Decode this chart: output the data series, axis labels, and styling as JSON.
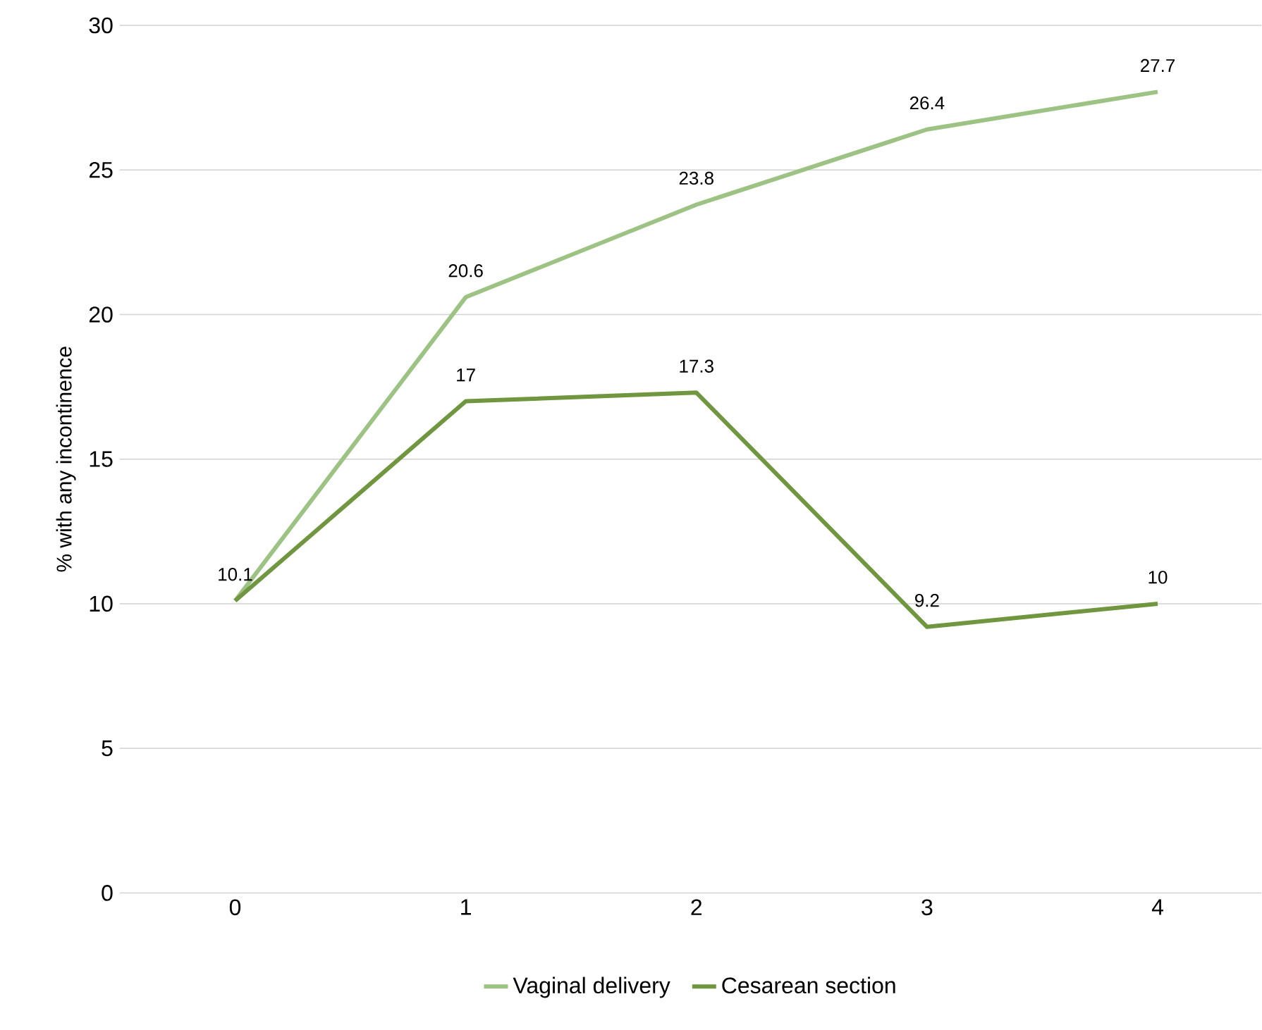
{
  "chart_data": {
    "type": "line",
    "ylabel": "% with any incontinence",
    "categories": [
      "0",
      "1",
      "2",
      "3",
      "4"
    ],
    "series": [
      {
        "name": "Vaginal delivery",
        "color": "#9dc384",
        "values": [
          10.1,
          20.6,
          23.8,
          26.4,
          27.7
        ],
        "value_labels": [
          "10.1",
          "20.6",
          "23.8",
          "26.4",
          "27.7"
        ]
      },
      {
        "name": "Cesarean section",
        "color": "#70963f",
        "values": [
          10.1,
          17,
          17.3,
          9.2,
          10
        ],
        "value_labels": [
          null,
          "17",
          "17.3",
          "9.2",
          "10"
        ]
      }
    ],
    "ylim": [
      0,
      30
    ],
    "yticks": [
      0,
      5,
      10,
      15,
      20,
      25,
      30
    ],
    "grid": "y",
    "legend": "bottom",
    "marker": "none",
    "line_style": "solid"
  }
}
